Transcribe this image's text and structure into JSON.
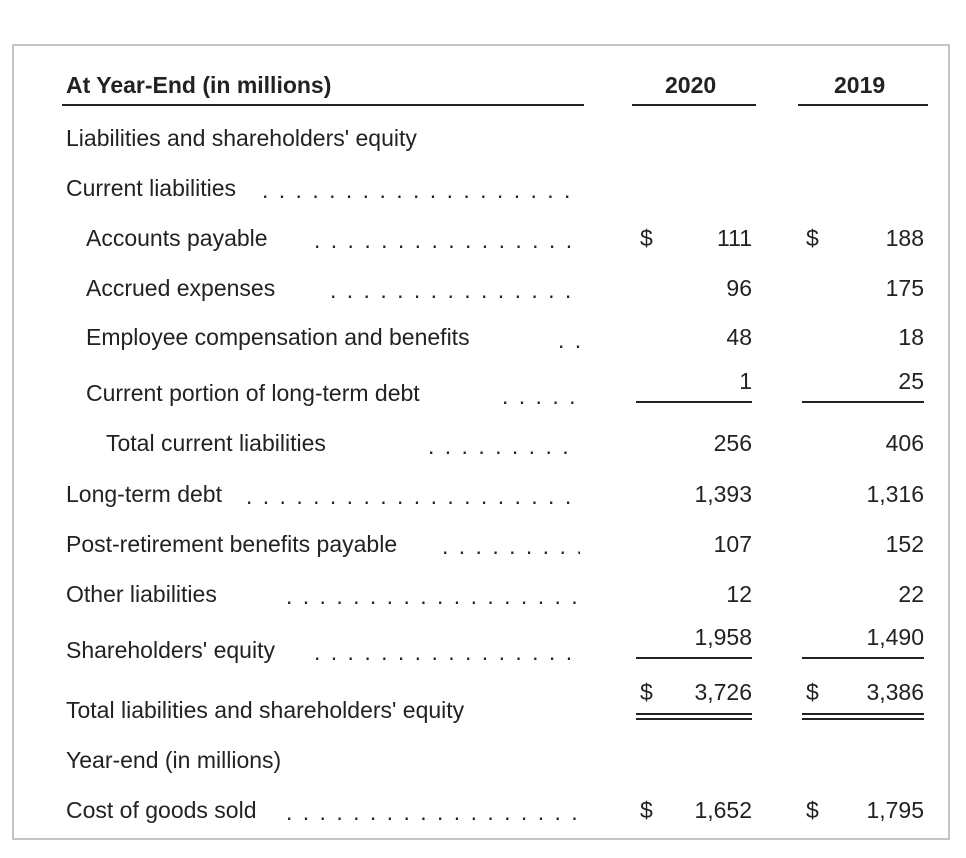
{
  "header": {
    "label": "At Year-End (in millions)",
    "years": [
      "2020",
      "2019"
    ]
  },
  "rows": {
    "section": "Liabilities and shareholders' equity",
    "current_liabilities": "Current liabilities",
    "accounts_payable": {
      "label": "Accounts payable",
      "v2020": "111",
      "v2019": "188"
    },
    "accrued_expenses": {
      "label": "Accrued expenses",
      "v2020": "96",
      "v2019": "175"
    },
    "employee_comp": {
      "label": "Employee compensation and benefits",
      "v2020": "48",
      "v2019": "18"
    },
    "current_portion": {
      "label": "Current portion of long-term debt",
      "v2020": "1",
      "v2019": "25"
    },
    "total_current": {
      "label": "Total current liabilities",
      "v2020": "256",
      "v2019": "406"
    },
    "long_term_debt": {
      "label": "Long-term debt",
      "v2020": "1,393",
      "v2019": "1,316"
    },
    "post_retirement": {
      "label": "Post-retirement benefits payable",
      "v2020": "107",
      "v2019": "152"
    },
    "other_liabilities": {
      "label": "Other liabilities",
      "v2020": "12",
      "v2019": "22"
    },
    "shareholders_equity": {
      "label": "Shareholders' equity",
      "v2020": "1,958",
      "v2019": "1,490"
    },
    "total_liabilities": {
      "label": "Total liabilities and shareholders' equity",
      "v2020": "3,726",
      "v2019": "3,386"
    },
    "year_end": "Year-end (in millions)",
    "cogs": {
      "label": "Cost of goods sold",
      "v2020": "1,652",
      "v2019": "1,795"
    }
  },
  "currency_symbol": "$"
}
